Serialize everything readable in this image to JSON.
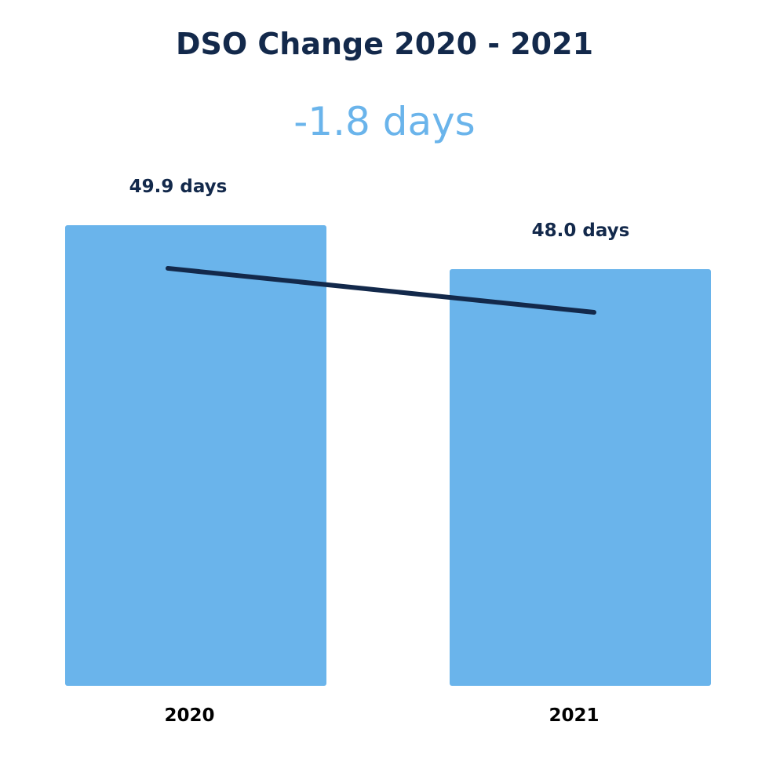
{
  "chart_data": {
    "type": "bar",
    "title": "DSO Change 2020 - 2021",
    "subtitle": "-1.8 days",
    "categories": [
      "2020",
      "2021"
    ],
    "values": [
      49.9,
      48.0
    ],
    "data_labels": [
      "49.9 days",
      "48.0 days"
    ],
    "xlabel": "",
    "ylabel": "",
    "ylim": [
      30,
      50
    ],
    "grid": false,
    "overlay_line": true,
    "colors": {
      "bar": "#6ab4eb",
      "line": "#13294b",
      "title": "#13294b",
      "subtitle": "#6ab4eb"
    }
  }
}
